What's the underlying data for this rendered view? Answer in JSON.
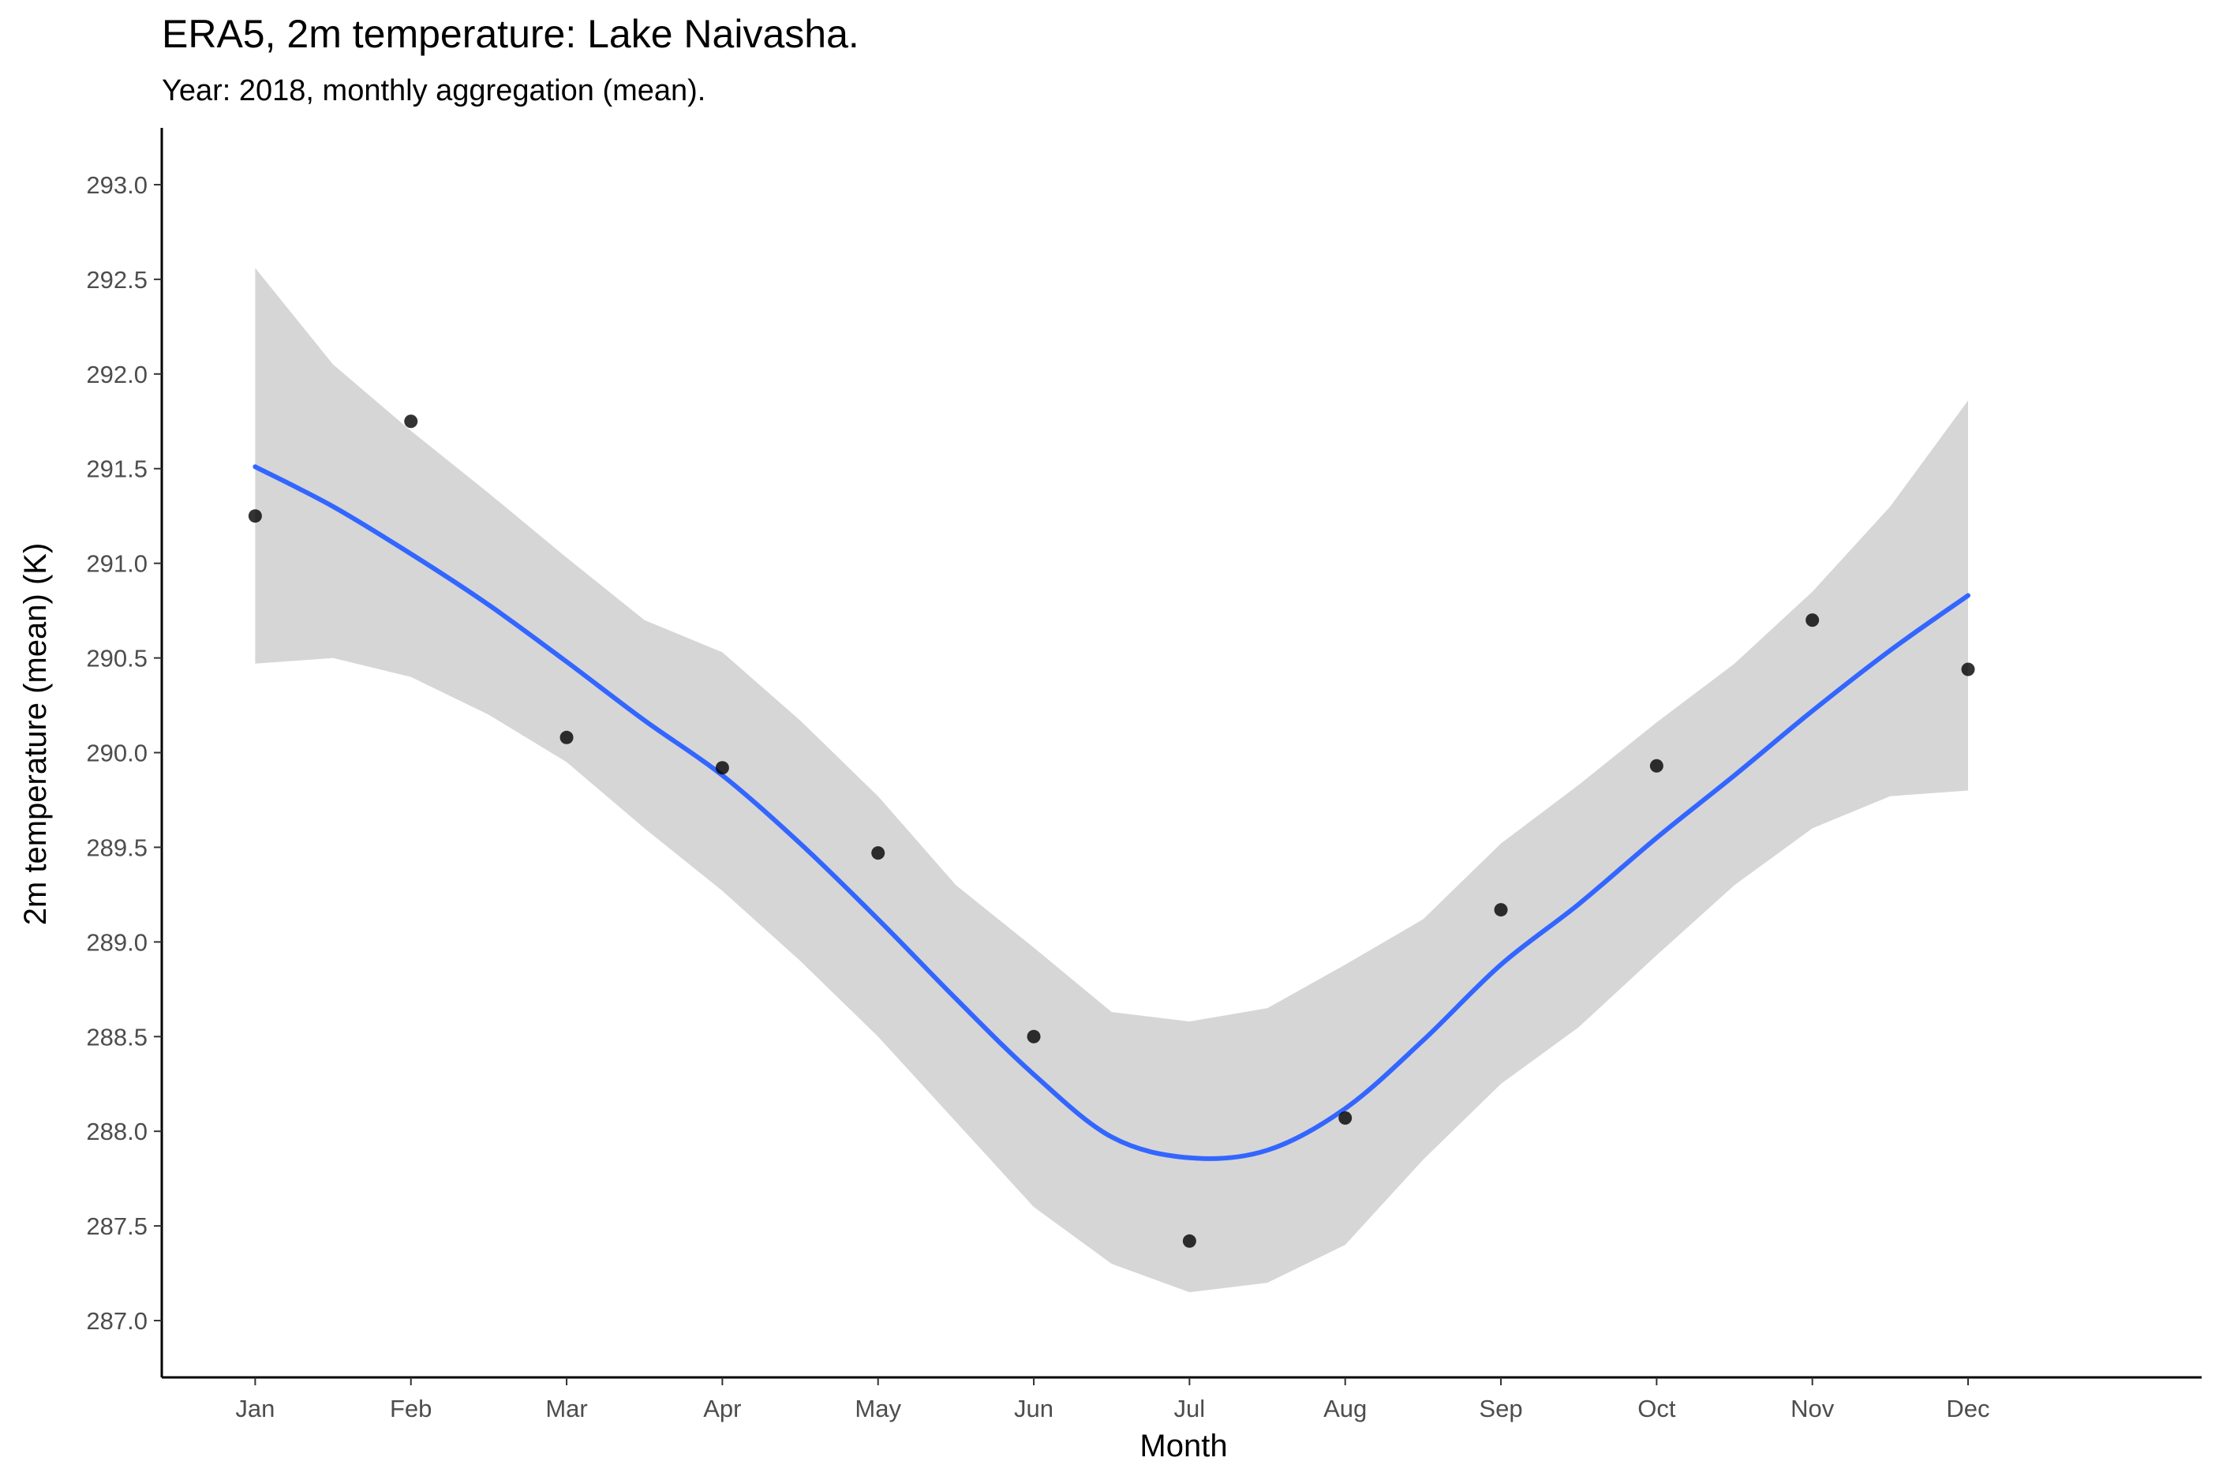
{
  "chart_data": {
    "type": "scatter",
    "title": "ERA5, 2m temperature: Lake Naivasha.",
    "subtitle": "Year: 2018, monthly aggregation (mean).",
    "xlabel": "Month",
    "ylabel": "2m temperature (mean) (K)",
    "categories": [
      "Jan",
      "Feb",
      "Mar",
      "Apr",
      "May",
      "Jun",
      "Jul",
      "Aug",
      "Sep",
      "Oct",
      "Nov",
      "Dec"
    ],
    "values": [
      291.25,
      291.75,
      290.08,
      289.92,
      289.47,
      288.5,
      287.42,
      288.07,
      289.17,
      289.93,
      290.7,
      290.44
    ],
    "smooth": {
      "method": "loess",
      "x": [
        1,
        1.5,
        2,
        2.5,
        3,
        3.5,
        4,
        4.5,
        5,
        5.5,
        6,
        6.5,
        7,
        7.5,
        8,
        8.5,
        9,
        9.5,
        10,
        10.5,
        11,
        11.5,
        12
      ],
      "fit": [
        291.51,
        291.3,
        291.05,
        290.78,
        290.48,
        290.17,
        289.88,
        289.52,
        289.12,
        288.7,
        288.3,
        287.97,
        287.86,
        287.9,
        288.12,
        288.48,
        288.88,
        289.2,
        289.55,
        289.88,
        290.22,
        290.54,
        290.83
      ],
      "lower": [
        290.47,
        290.5,
        290.4,
        290.2,
        289.95,
        289.6,
        289.27,
        288.9,
        288.5,
        288.05,
        287.6,
        287.3,
        287.15,
        287.2,
        287.4,
        287.85,
        288.25,
        288.55,
        288.93,
        289.3,
        289.6,
        289.77,
        289.8
      ],
      "upper": [
        292.56,
        292.05,
        291.7,
        291.37,
        291.03,
        290.7,
        290.53,
        290.17,
        289.77,
        289.3,
        288.97,
        288.63,
        288.58,
        288.65,
        288.88,
        289.12,
        289.52,
        289.83,
        290.16,
        290.47,
        290.85,
        291.3,
        291.86
      ]
    },
    "ylim": [
      286.7,
      293.3
    ],
    "yticks": [
      287.0,
      287.5,
      288.0,
      288.5,
      289.0,
      289.5,
      290.0,
      290.5,
      291.0,
      291.5,
      292.0,
      292.5,
      293.0
    ],
    "xlim": [
      0.4,
      13.5
    ],
    "grid": false,
    "legend": "none",
    "colors": {
      "points": "#000000",
      "line": "#3366ff",
      "ribbon": "#d6d6d6",
      "axis": "#000000",
      "tick_text": "#4d4d4d"
    }
  }
}
